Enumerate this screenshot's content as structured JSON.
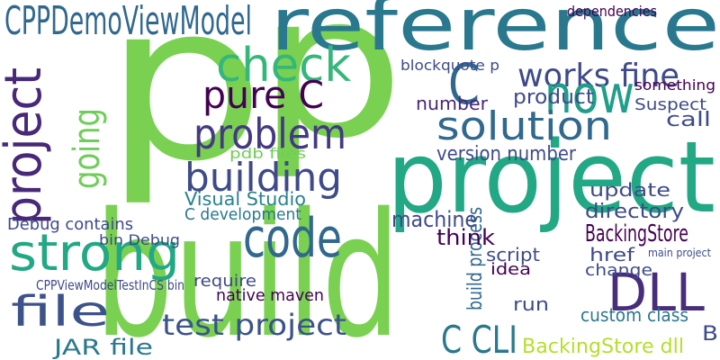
{
  "words": [
    {
      "text": "p",
      "color": "#7ad151"
    },
    {
      "text": "p",
      "color": "#7ad151"
    },
    {
      "text": "build",
      "color": "#7ad151"
    },
    {
      "text": "project",
      "color": "#22a884"
    },
    {
      "text": "reference",
      "color": "#2a788e"
    },
    {
      "text": "CPPDemoViewModel",
      "color": "#31688e"
    },
    {
      "text": "project",
      "color": "#482878"
    },
    {
      "text": "strong",
      "color": "#22a884"
    },
    {
      "text": "check",
      "color": "#35b779"
    },
    {
      "text": "C",
      "color": "#31688e"
    },
    {
      "text": "works fine",
      "color": "#3e4a89"
    },
    {
      "text": "now",
      "color": "#1f9e89"
    },
    {
      "text": "pure C",
      "color": "#440154"
    },
    {
      "text": "problem",
      "color": "#443983"
    },
    {
      "text": "solution",
      "color": "#31688e"
    },
    {
      "text": "going",
      "color": "#6ece58"
    },
    {
      "text": "building",
      "color": "#3e4a89"
    },
    {
      "text": "code",
      "color": "#31688e"
    },
    {
      "text": "file",
      "color": "#3b528b"
    },
    {
      "text": "test project",
      "color": "#3b528b"
    },
    {
      "text": "JAR file",
      "color": "#2a788e"
    },
    {
      "text": "DLL",
      "color": "#472d7b"
    },
    {
      "text": "C CLI",
      "color": "#2a788e"
    },
    {
      "text": "BackingStore dll",
      "color": "#b5de2b"
    },
    {
      "text": "BackingStore",
      "color": "#440154"
    },
    {
      "text": "directory",
      "color": "#3e4a89"
    },
    {
      "text": "update",
      "color": "#3e4a89"
    },
    {
      "text": "Visual Studio",
      "color": "#26828e"
    },
    {
      "text": "version number",
      "color": "#3e4a89"
    },
    {
      "text": "build process",
      "color": "#31688e"
    },
    {
      "text": "product",
      "color": "#3e4a89"
    },
    {
      "text": "call",
      "color": "#3e4a89"
    },
    {
      "text": "Suspect",
      "color": "#3e4a89"
    },
    {
      "text": "something",
      "color": "#440154"
    },
    {
      "text": "number",
      "color": "#482878"
    },
    {
      "text": "blockquote p",
      "color": "#3e4a89"
    },
    {
      "text": "C development",
      "color": "#2a788e"
    },
    {
      "text": "pdb files",
      "color": "#6ece58"
    },
    {
      "text": "machine",
      "color": "#3e4a89"
    },
    {
      "text": "think",
      "color": "#440154"
    },
    {
      "text": "href",
      "color": "#3e4a89"
    },
    {
      "text": "change",
      "color": "#3e4a89"
    },
    {
      "text": "custom class",
      "color": "#2a788e"
    },
    {
      "text": "B",
      "color": "#3e4a89"
    },
    {
      "text": "run",
      "color": "#3e4a89"
    },
    {
      "text": "idea",
      "color": "#440154"
    },
    {
      "text": "script",
      "color": "#3e4a89"
    },
    {
      "text": "bin Debug",
      "color": "#3e4a89"
    },
    {
      "text": "Debug contains",
      "color": "#3e4a89"
    },
    {
      "text": "CPPViewModelTestInCS bin",
      "color": "#3e4a89"
    },
    {
      "text": "native maven",
      "color": "#440154"
    },
    {
      "text": "require",
      "color": "#3e4a89"
    },
    {
      "text": "dependencies",
      "color": "#440154"
    },
    {
      "text": "main project",
      "color": "#3e4a89"
    }
  ]
}
